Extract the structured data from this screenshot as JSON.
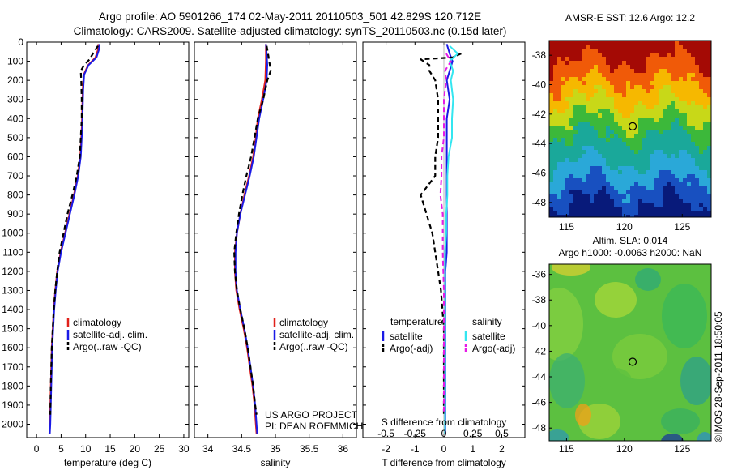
{
  "header": {
    "line1": "Argo profile: AO 5901266_174 02-May-2011 20110503_501 42.829S 120.712E",
    "line2": "Climatology: CARS2009. Satellite-adjusted climatology: synTS_20110503.nc (0.15d later)"
  },
  "colors": {
    "climatology": "#e0201a",
    "satellite": "#1a1ae6",
    "argo": "#000000",
    "salinity_satellite": "#33e6f0",
    "salinity_argo": "#e61ae6"
  },
  "chart_data": [
    {
      "type": "line",
      "title": "",
      "xlabel": "temperature (deg C)",
      "ylabel": "",
      "xlim": [
        -2,
        31
      ],
      "ylim": [
        2070,
        0
      ],
      "xticks": [
        "0",
        "5",
        "10",
        "15",
        "20",
        "25",
        "30"
      ],
      "yticks": [
        "0",
        "100",
        "200",
        "300",
        "400",
        "500",
        "600",
        "700",
        "800",
        "900",
        "1000",
        "1100",
        "1200",
        "1300",
        "1400",
        "1500",
        "1600",
        "1700",
        "1800",
        "1900",
        "2000"
      ],
      "legend": {
        "placement": "lower-middle",
        "entries": [
          "climatology",
          "satellite-adj. clim.",
          "Argo(..raw -QC)"
        ]
      },
      "series": [
        {
          "name": "climatology",
          "style": "solid",
          "points": [
            [
              12.6,
              10
            ],
            [
              12.5,
              40
            ],
            [
              12.0,
              80
            ],
            [
              10.5,
              120
            ],
            [
              9.6,
              170
            ],
            [
              9.4,
              250
            ],
            [
              9.3,
              350
            ],
            [
              9.2,
              450
            ],
            [
              9.1,
              500
            ],
            [
              8.9,
              600
            ],
            [
              8.4,
              700
            ],
            [
              7.6,
              800
            ],
            [
              6.7,
              900
            ],
            [
              5.8,
              1000
            ],
            [
              4.9,
              1100
            ],
            [
              4.2,
              1200
            ],
            [
              3.8,
              1300
            ],
            [
              3.5,
              1400
            ],
            [
              3.3,
              1500
            ],
            [
              3.1,
              1600
            ],
            [
              2.9,
              1800
            ],
            [
              2.7,
              2000
            ],
            [
              2.6,
              2050
            ]
          ]
        },
        {
          "name": "satellite-adj. clim.",
          "style": "solid",
          "points": [
            [
              12.8,
              10
            ],
            [
              12.7,
              40
            ],
            [
              12.2,
              80
            ],
            [
              10.6,
              120
            ],
            [
              9.7,
              170
            ],
            [
              9.5,
              250
            ],
            [
              9.4,
              350
            ],
            [
              9.3,
              450
            ],
            [
              9.2,
              500
            ],
            [
              9.0,
              600
            ],
            [
              8.5,
              700
            ],
            [
              7.7,
              800
            ],
            [
              6.8,
              900
            ],
            [
              5.9,
              1000
            ],
            [
              5.0,
              1100
            ],
            [
              4.3,
              1200
            ],
            [
              3.9,
              1300
            ],
            [
              3.6,
              1400
            ],
            [
              3.4,
              1500
            ],
            [
              3.2,
              1600
            ],
            [
              3.0,
              1800
            ],
            [
              2.8,
              2000
            ],
            [
              2.7,
              2050
            ]
          ]
        },
        {
          "name": "Argo(..raw -QC)",
          "style": "dashed",
          "points": [
            [
              12.5,
              20
            ],
            [
              11.5,
              60
            ],
            [
              10.8,
              90
            ],
            [
              9.7,
              120
            ],
            [
              9.0,
              150
            ],
            [
              9.1,
              200
            ],
            [
              9.2,
              300
            ],
            [
              9.2,
              400
            ],
            [
              9.0,
              500
            ],
            [
              8.8,
              600
            ],
            [
              8.2,
              700
            ],
            [
              7.3,
              800
            ],
            [
              6.3,
              900
            ],
            [
              5.5,
              1000
            ],
            [
              4.7,
              1100
            ],
            [
              4.2,
              1200
            ],
            [
              3.8,
              1300
            ],
            [
              3.5,
              1400
            ],
            [
              3.3,
              1500
            ],
            [
              3.1,
              1600
            ],
            [
              2.9,
              1800
            ],
            [
              2.8,
              1950
            ]
          ]
        }
      ]
    },
    {
      "type": "line",
      "title": "",
      "xlabel": "salinity",
      "ylabel": "",
      "xlim": [
        33.8,
        36.2
      ],
      "ylim": [
        2070,
        0
      ],
      "xticks": [
        "34",
        "34.5",
        "35",
        "35.5",
        "36"
      ],
      "legend": {
        "placement": "lower-middle",
        "entries": [
          "climatology",
          "satellite-adj. clim.",
          "Argo(..raw -QC)"
        ]
      },
      "annotation": [
        "US ARGO PROJECT",
        "PI: DEAN ROEMMICH"
      ],
      "series": [
        {
          "name": "climatology",
          "style": "solid",
          "points": [
            [
              34.86,
              10
            ],
            [
              34.86,
              60
            ],
            [
              34.86,
              100
            ],
            [
              34.85,
              200
            ],
            [
              34.8,
              300
            ],
            [
              34.74,
              400
            ],
            [
              34.71,
              500
            ],
            [
              34.67,
              600
            ],
            [
              34.61,
              700
            ],
            [
              34.54,
              800
            ],
            [
              34.48,
              900
            ],
            [
              34.43,
              1000
            ],
            [
              34.4,
              1100
            ],
            [
              34.4,
              1200
            ],
            [
              34.42,
              1300
            ],
            [
              34.47,
              1400
            ],
            [
              34.53,
              1500
            ],
            [
              34.58,
              1600
            ],
            [
              34.62,
              1700
            ],
            [
              34.66,
              1800
            ],
            [
              34.69,
              1900
            ],
            [
              34.71,
              2000
            ],
            [
              34.72,
              2050
            ]
          ]
        },
        {
          "name": "satellite-adj. clim.",
          "style": "solid",
          "points": [
            [
              34.86,
              10
            ],
            [
              34.87,
              60
            ],
            [
              34.88,
              120
            ],
            [
              34.87,
              200
            ],
            [
              34.82,
              300
            ],
            [
              34.76,
              400
            ],
            [
              34.72,
              500
            ],
            [
              34.68,
              600
            ],
            [
              34.62,
              700
            ],
            [
              34.55,
              800
            ],
            [
              34.48,
              900
            ],
            [
              34.43,
              1000
            ],
            [
              34.41,
              1100
            ],
            [
              34.41,
              1200
            ],
            [
              34.43,
              1300
            ],
            [
              34.48,
              1400
            ],
            [
              34.54,
              1500
            ],
            [
              34.59,
              1600
            ],
            [
              34.63,
              1700
            ],
            [
              34.67,
              1800
            ],
            [
              34.7,
              1900
            ],
            [
              34.72,
              2000
            ],
            [
              34.73,
              2050
            ]
          ]
        },
        {
          "name": "Argo(..raw -QC)",
          "style": "dashed",
          "points": [
            [
              34.87,
              20
            ],
            [
              34.9,
              80
            ],
            [
              34.93,
              150
            ],
            [
              34.88,
              200
            ],
            [
              34.82,
              300
            ],
            [
              34.74,
              400
            ],
            [
              34.69,
              500
            ],
            [
              34.64,
              600
            ],
            [
              34.57,
              700
            ],
            [
              34.51,
              800
            ],
            [
              34.46,
              900
            ],
            [
              34.42,
              1000
            ],
            [
              34.39,
              1100
            ],
            [
              34.4,
              1200
            ],
            [
              34.43,
              1300
            ],
            [
              34.48,
              1400
            ],
            [
              34.54,
              1500
            ],
            [
              34.59,
              1600
            ],
            [
              34.63,
              1700
            ],
            [
              34.67,
              1800
            ],
            [
              34.7,
              1900
            ],
            [
              34.72,
              1950
            ]
          ]
        }
      ]
    },
    {
      "type": "line",
      "title": "",
      "xlabel": "T difference from climatology",
      "ylabel": "",
      "xlim": [
        -2.8,
        2.8
      ],
      "ylim": [
        2070,
        0
      ],
      "xticks": [
        "-2",
        "-1",
        "0",
        "1",
        "2"
      ],
      "secondary_xlabel": "S difference from climatology",
      "secondary_xticks": [
        "-0.5",
        "-0.25",
        "0",
        "0.25",
        "0.5"
      ],
      "legend": {
        "placement": "lower-middle",
        "entries": [
          "temperature",
          "satellite",
          "Argo(-adj)",
          "salinity",
          "satellite",
          "Argo(-adj)"
        ]
      },
      "series": [
        {
          "name": "temperature satellite",
          "style": "solid",
          "points": [
            [
              0.1,
              10
            ],
            [
              0.2,
              60
            ],
            [
              0.3,
              100
            ],
            [
              0.2,
              150
            ],
            [
              0.1,
              200
            ],
            [
              0.2,
              300
            ],
            [
              0.1,
              400
            ],
            [
              0.1,
              500
            ],
            [
              0.1,
              600
            ],
            [
              0.1,
              700
            ],
            [
              0.1,
              800
            ],
            [
              0.1,
              900
            ],
            [
              0.1,
              1000
            ],
            [
              0.1,
              1100
            ],
            [
              0.05,
              1200
            ],
            [
              0.05,
              1300
            ],
            [
              0.05,
              1500
            ],
            [
              0.05,
              2050
            ]
          ]
        },
        {
          "name": "temperature Argo(-adj)",
          "style": "dashed",
          "points": [
            [
              0.6,
              60
            ],
            [
              0.3,
              80
            ],
            [
              -0.8,
              90
            ],
            [
              -0.5,
              120
            ],
            [
              -0.5,
              150
            ],
            [
              -0.3,
              200
            ],
            [
              -0.2,
              300
            ],
            [
              -0.2,
              400
            ],
            [
              -0.2,
              500
            ],
            [
              -0.3,
              600
            ],
            [
              -0.3,
              700
            ],
            [
              -0.8,
              800
            ],
            [
              -0.6,
              900
            ],
            [
              -0.4,
              1000
            ],
            [
              -0.3,
              1100
            ],
            [
              -0.2,
              1200
            ],
            [
              -0.1,
              1300
            ],
            [
              0.0,
              1500
            ],
            [
              0.0,
              1950
            ]
          ]
        },
        {
          "name": "salinity satellite",
          "style": "solid",
          "points": [
            [
              0.05,
              20
            ],
            [
              0.12,
              60
            ],
            [
              0.05,
              100
            ],
            [
              0.08,
              150
            ],
            [
              0.06,
              200
            ],
            [
              0.08,
              300
            ],
            [
              0.07,
              400
            ],
            [
              0.07,
              500
            ],
            [
              0.04,
              600
            ],
            [
              0.03,
              700
            ],
            [
              0.03,
              800
            ],
            [
              0.02,
              900
            ],
            [
              0.02,
              1000
            ],
            [
              0.01,
              1100
            ],
            [
              0.01,
              1200
            ],
            [
              0.01,
              1400
            ],
            [
              0.01,
              2050
            ]
          ]
        },
        {
          "name": "salinity Argo(-adj)",
          "style": "dashed",
          "points": [
            [
              0.02,
              60
            ],
            [
              0.06,
              100
            ],
            [
              0.01,
              150
            ],
            [
              0.02,
              200
            ],
            [
              0.0,
              300
            ],
            [
              0.0,
              400
            ],
            [
              0.0,
              500
            ],
            [
              -0.02,
              600
            ],
            [
              -0.02,
              700
            ],
            [
              -0.03,
              800
            ],
            [
              -0.01,
              900
            ],
            [
              -0.01,
              1000
            ],
            [
              -0.01,
              1100
            ],
            [
              0.0,
              1300
            ],
            [
              0.0,
              1500
            ],
            [
              0.0,
              1950
            ]
          ]
        }
      ]
    },
    {
      "type": "heatmap",
      "title": "AMSR-E SST: 12.6 Argo: 12.2",
      "xlim": [
        113.5,
        127.5
      ],
      "ylim": [
        -49,
        -37
      ],
      "xticks": [
        "115",
        "120",
        "125"
      ],
      "yticks": [
        "-38",
        "-40",
        "-42",
        "-44",
        "-46",
        "-48"
      ],
      "marker": {
        "lon": 120.712,
        "lat": -42.829
      },
      "bands": [
        {
          "lat": -37.5,
          "color": "#a40a05"
        },
        {
          "lat": -39.0,
          "color": "#f05a08"
        },
        {
          "lat": -40.3,
          "color": "#f6b800"
        },
        {
          "lat": -41.5,
          "color": "#c8d818"
        },
        {
          "lat": -42.6,
          "color": "#3cb83a"
        },
        {
          "lat": -44.3,
          "color": "#1aa89a"
        },
        {
          "lat": -45.8,
          "color": "#2aa8d8"
        },
        {
          "lat": -47.2,
          "color": "#1850c0"
        },
        {
          "lat": -48.5,
          "color": "#081a7a"
        }
      ]
    },
    {
      "type": "heatmap",
      "title": "Altim. SLA: 0.014",
      "subtitle": "Argo h1000: -0.0063 h2000: NaN",
      "xlim": [
        113.5,
        127.5
      ],
      "ylim": [
        -49,
        -35.2
      ],
      "xticks": [
        "115",
        "120",
        "125"
      ],
      "yticks": [
        "-36",
        "-38",
        "-40",
        "-42",
        "-44",
        "-46",
        "-48"
      ],
      "marker": {
        "lon": 120.712,
        "lat": -42.829
      },
      "base_color": "#5cc040"
    }
  ],
  "watermark": "©IMOS 28-Sep-2011 18:50:05"
}
